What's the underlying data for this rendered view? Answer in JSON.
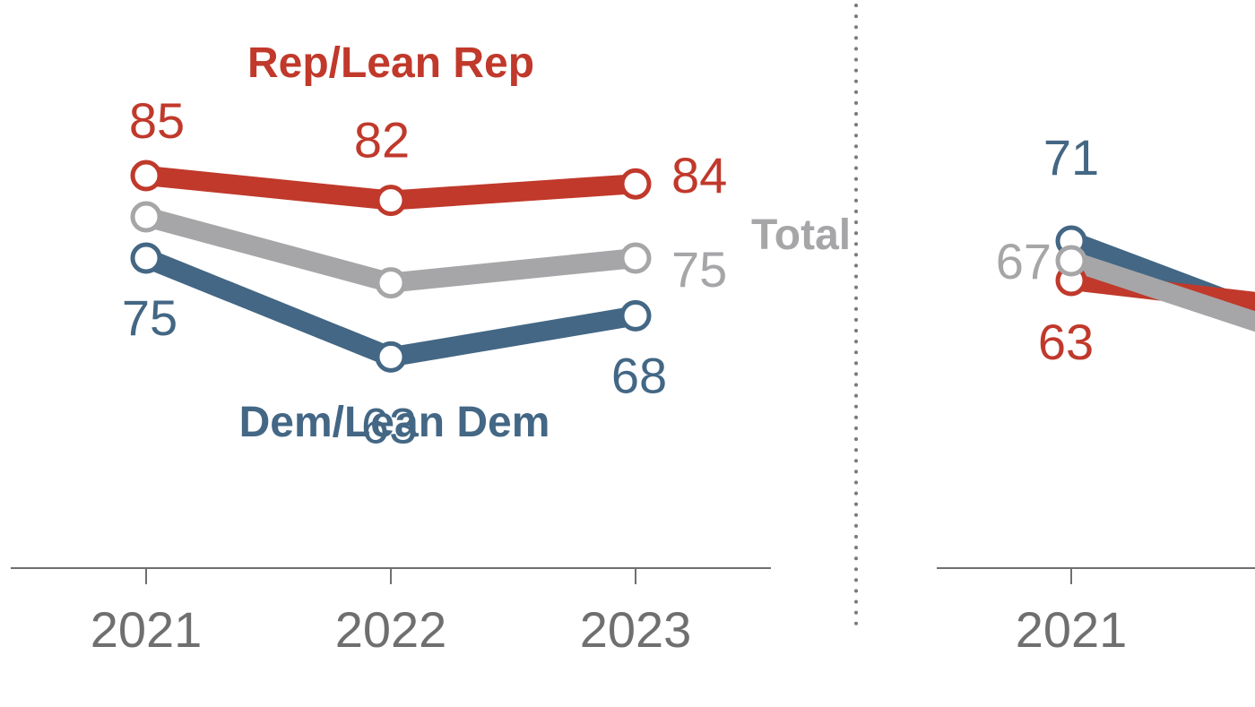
{
  "colors": {
    "rep": "#c0392b",
    "dem": "#436784",
    "total": "#a6a6a8",
    "axis": "#6f6f6f",
    "divider": "#7a7a7a",
    "marker_fill": "#ffffff"
  },
  "chart_data": [
    {
      "type": "line",
      "x": [
        "2021",
        "2022",
        "2023"
      ],
      "series": [
        {
          "name": "Rep/Lean Rep",
          "key": "rep",
          "values": [
            85,
            82,
            84
          ],
          "labels": [
            "85",
            "82",
            "84"
          ]
        },
        {
          "name": "Total",
          "key": "total",
          "values": [
            80,
            72,
            75
          ],
          "labels": [
            null,
            null,
            "75"
          ]
        },
        {
          "name": "Dem/Lean Dem",
          "key": "dem",
          "values": [
            75,
            63,
            68
          ],
          "labels": [
            "75",
            "63",
            "68"
          ]
        }
      ],
      "legend": "inline labels"
    },
    {
      "type": "line",
      "x": [
        "2021"
      ],
      "series": [
        {
          "name": "",
          "key": "dem",
          "values": [
            71
          ],
          "labels": [
            "71"
          ]
        },
        {
          "name": "",
          "key": "total",
          "values": [
            67
          ],
          "labels": [
            "67"
          ]
        },
        {
          "name": "",
          "key": "rep",
          "values": [
            63
          ],
          "labels": [
            "63"
          ]
        }
      ]
    }
  ]
}
